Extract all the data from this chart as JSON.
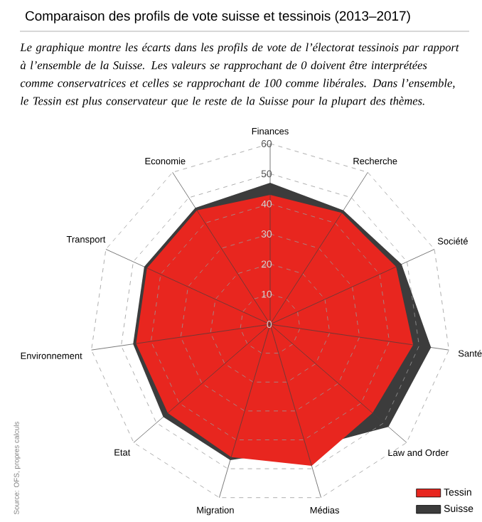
{
  "chart_data": {
    "type": "radar",
    "title": "Comparaison des profils de vote suisse et tessinois (2013–2017)",
    "subtitle": "Le graphique montre les écarts dans les profils de vote de l’électorat tessinois par rapport à l’ensemble de la Suisse. Les valeurs se rapprochant de 0 doivent être interprétées comme conservatrices et celles se rapprochant de 100 comme libérales. Dans l’ensemble, le Tessin est plus conservateur que le reste de la Suisse pour la plupart des thèmes.",
    "categories": [
      "Finances",
      "Recherche",
      "Société",
      "Santé",
      "Law and Order",
      "Médias",
      "Migration",
      "Etat",
      "Environnement",
      "Transport",
      "Economie"
    ],
    "series": [
      {
        "name": "Tessin",
        "color": "#e8261f",
        "values": [
          43,
          44,
          46,
          48,
          45,
          49,
          46,
          45,
          45,
          45,
          45
        ]
      },
      {
        "name": "Suisse",
        "color": "#3c3c3c",
        "values": [
          47,
          45,
          48,
          54,
          52,
          43,
          47,
          47,
          46,
          46,
          46
        ]
      }
    ],
    "ylim": [
      0,
      60
    ],
    "yticks": [
      0,
      10,
      20,
      30,
      40,
      50,
      60
    ],
    "grid": true,
    "legend": "bottom right",
    "annotations": [
      "Source: OFS, propres calculs"
    ]
  }
}
